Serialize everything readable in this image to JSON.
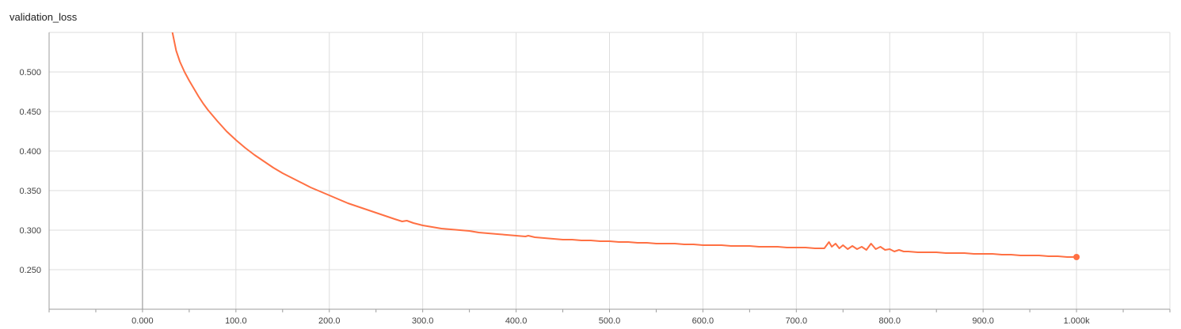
{
  "chart_data": {
    "type": "line",
    "title": "validation_loss",
    "xlabel": "",
    "ylabel": "",
    "xlim": [
      -100,
      1100
    ],
    "ylim": [
      0.2,
      0.55
    ],
    "x_ticks": [
      0,
      100,
      200,
      300,
      400,
      500,
      600,
      700,
      800,
      900,
      1000
    ],
    "x_tick_labels": [
      "0.000",
      "100.0",
      "200.0",
      "300.0",
      "400.0",
      "500.0",
      "600.0",
      "700.0",
      "800.0",
      "900.0",
      "1.000k"
    ],
    "y_ticks": [
      0.25,
      0.3,
      0.35,
      0.4,
      0.45,
      0.5
    ],
    "y_tick_labels": [
      "0.250",
      "0.300",
      "0.350",
      "0.400",
      "0.450",
      "0.500"
    ],
    "grid": true,
    "series": [
      {
        "color": "#ff7043",
        "x": [
          32,
          36,
          40,
          45,
          50,
          55,
          60,
          65,
          70,
          80,
          90,
          100,
          110,
          120,
          130,
          140,
          150,
          160,
          170,
          180,
          190,
          200,
          210,
          220,
          230,
          240,
          250,
          260,
          270,
          278,
          283,
          290,
          300,
          310,
          320,
          330,
          340,
          350,
          360,
          370,
          380,
          390,
          400,
          410,
          413,
          420,
          430,
          440,
          450,
          460,
          470,
          480,
          490,
          500,
          510,
          520,
          530,
          540,
          550,
          560,
          570,
          580,
          590,
          600,
          610,
          620,
          630,
          640,
          650,
          660,
          670,
          680,
          690,
          700,
          710,
          720,
          730,
          735,
          738,
          742,
          746,
          750,
          755,
          760,
          765,
          770,
          775,
          780,
          785,
          790,
          795,
          800,
          805,
          810,
          815,
          820,
          830,
          840,
          850,
          860,
          870,
          880,
          890,
          900,
          910,
          920,
          930,
          940,
          950,
          960,
          970,
          980,
          990,
          1000
        ],
        "y": [
          0.55,
          0.527,
          0.513,
          0.5,
          0.489,
          0.479,
          0.469,
          0.46,
          0.452,
          0.438,
          0.425,
          0.414,
          0.404,
          0.395,
          0.387,
          0.379,
          0.372,
          0.366,
          0.36,
          0.354,
          0.349,
          0.344,
          0.339,
          0.334,
          0.33,
          0.326,
          0.322,
          0.318,
          0.314,
          0.311,
          0.312,
          0.309,
          0.306,
          0.304,
          0.302,
          0.301,
          0.3,
          0.299,
          0.297,
          0.296,
          0.295,
          0.294,
          0.293,
          0.292,
          0.293,
          0.291,
          0.29,
          0.289,
          0.288,
          0.288,
          0.287,
          0.287,
          0.286,
          0.286,
          0.285,
          0.285,
          0.284,
          0.284,
          0.283,
          0.283,
          0.283,
          0.282,
          0.282,
          0.281,
          0.281,
          0.281,
          0.28,
          0.28,
          0.28,
          0.279,
          0.279,
          0.279,
          0.278,
          0.278,
          0.278,
          0.277,
          0.277,
          0.285,
          0.279,
          0.283,
          0.277,
          0.281,
          0.276,
          0.28,
          0.276,
          0.279,
          0.275,
          0.283,
          0.276,
          0.279,
          0.275,
          0.276,
          0.273,
          0.275,
          0.273,
          0.273,
          0.272,
          0.272,
          0.272,
          0.271,
          0.271,
          0.271,
          0.27,
          0.27,
          0.27,
          0.269,
          0.269,
          0.268,
          0.268,
          0.268,
          0.267,
          0.267,
          0.266,
          0.266
        ]
      }
    ]
  }
}
